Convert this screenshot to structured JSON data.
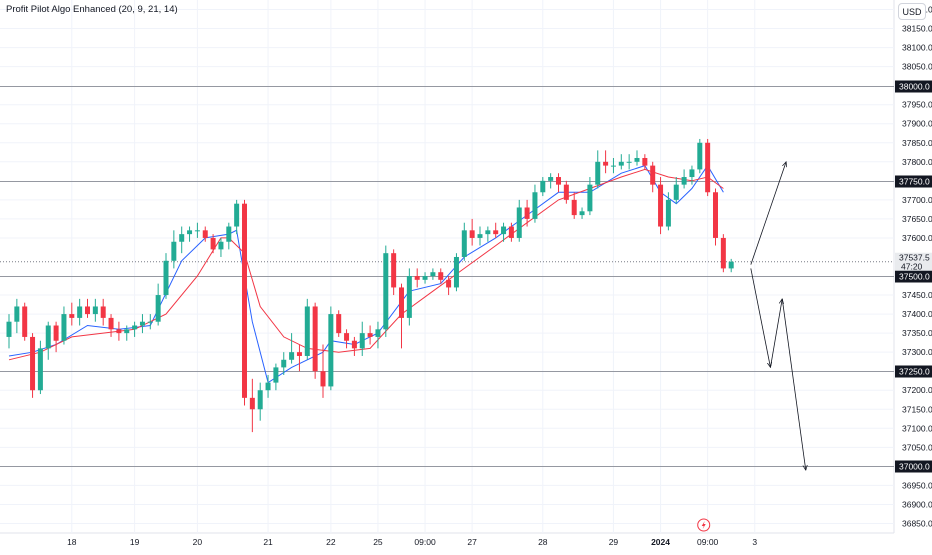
{
  "header": {
    "indicator_title": "Profit Pilot Algo Enhanced (20, 9, 21, 14)",
    "currency_label": "USD"
  },
  "colors": {
    "up": "#22ab94",
    "down": "#f23645",
    "ema_fast": "#2962ff",
    "ema_slow": "#f23645",
    "level_line": "#9598a1",
    "arrow": "#131722"
  },
  "chart_data": {
    "type": "candlestick",
    "y_axis": {
      "min": 36825,
      "max": 38225,
      "ticks": [
        38200,
        38150,
        38100,
        38050,
        37950,
        37900,
        37850,
        37800,
        37700,
        37650,
        37600,
        37450,
        37400,
        37350,
        37300,
        37200,
        37150,
        37100,
        37050,
        36950,
        36900,
        36850
      ],
      "tick_labels": [
        "38200.0",
        "38150.0",
        "38100.0",
        "38050.0",
        "37950.0",
        "37900.0",
        "37850.0",
        "37800.0",
        "37700.0",
        "37650.0",
        "37600.0",
        "37450.0",
        "37400.0",
        "37350.0",
        "37300.0",
        "37200.0",
        "37150.0",
        "37100.0",
        "37050.0",
        "36950.0",
        "36900.0",
        "36850.0"
      ],
      "partial_tick": {
        "value": 37550,
        "label": "37550.0"
      }
    },
    "x_axis": {
      "labels": [
        {
          "label": "18",
          "index": 8
        },
        {
          "label": "19",
          "index": 16
        },
        {
          "label": "20",
          "index": 24
        },
        {
          "label": "21",
          "index": 33
        },
        {
          "label": "22",
          "index": 41
        },
        {
          "label": "25",
          "index": 47
        },
        {
          "label": "09:00",
          "index": 53
        },
        {
          "label": "27",
          "index": 59
        },
        {
          "label": "28",
          "index": 68
        },
        {
          "label": "29",
          "index": 77
        },
        {
          "label": "2024",
          "index": 83,
          "bold": true
        },
        {
          "label": "09:00",
          "index": 89
        },
        {
          "label": "3",
          "index": 95
        }
      ]
    },
    "horizontal_levels": [
      {
        "value": 38000,
        "label": "38000.0"
      },
      {
        "value": 37750,
        "label": "37750.0"
      },
      {
        "value": 37500,
        "label": "37500.0"
      },
      {
        "value": 37250,
        "label": "37250.0"
      },
      {
        "value": 37000,
        "label": "37000.0"
      }
    ],
    "current_price": {
      "value": 37537.5,
      "label": "37537.5",
      "countdown": "47:20",
      "dotted_value": 37537.5
    },
    "candles": [
      {
        "o": 37340,
        "h": 37400,
        "l": 37310,
        "c": 37380
      },
      {
        "o": 37380,
        "h": 37440,
        "l": 37350,
        "c": 37420
      },
      {
        "o": 37420,
        "h": 37430,
        "l": 37330,
        "c": 37340
      },
      {
        "o": 37340,
        "h": 37350,
        "l": 37180,
        "c": 37200
      },
      {
        "o": 37200,
        "h": 37330,
        "l": 37190,
        "c": 37310
      },
      {
        "o": 37310,
        "h": 37380,
        "l": 37280,
        "c": 37370
      },
      {
        "o": 37370,
        "h": 37380,
        "l": 37300,
        "c": 37330
      },
      {
        "o": 37330,
        "h": 37420,
        "l": 37320,
        "c": 37400
      },
      {
        "o": 37400,
        "h": 37430,
        "l": 37370,
        "c": 37390
      },
      {
        "o": 37390,
        "h": 37440,
        "l": 37370,
        "c": 37420
      },
      {
        "o": 37420,
        "h": 37440,
        "l": 37390,
        "c": 37400
      },
      {
        "o": 37400,
        "h": 37440,
        "l": 37380,
        "c": 37420
      },
      {
        "o": 37420,
        "h": 37440,
        "l": 37370,
        "c": 37390
      },
      {
        "o": 37390,
        "h": 37400,
        "l": 37340,
        "c": 37360
      },
      {
        "o": 37360,
        "h": 37380,
        "l": 37330,
        "c": 37350
      },
      {
        "o": 37350,
        "h": 37370,
        "l": 37330,
        "c": 37360
      },
      {
        "o": 37360,
        "h": 37380,
        "l": 37340,
        "c": 37370
      },
      {
        "o": 37370,
        "h": 37400,
        "l": 37350,
        "c": 37380
      },
      {
        "o": 37380,
        "h": 37400,
        "l": 37360,
        "c": 37380
      },
      {
        "o": 37380,
        "h": 37480,
        "l": 37370,
        "c": 37450
      },
      {
        "o": 37450,
        "h": 37560,
        "l": 37440,
        "c": 37540
      },
      {
        "o": 37540,
        "h": 37620,
        "l": 37520,
        "c": 37590
      },
      {
        "o": 37590,
        "h": 37630,
        "l": 37560,
        "c": 37610
      },
      {
        "o": 37610,
        "h": 37630,
        "l": 37590,
        "c": 37620
      },
      {
        "o": 37620,
        "h": 37640,
        "l": 37600,
        "c": 37620
      },
      {
        "o": 37620,
        "h": 37630,
        "l": 37590,
        "c": 37600
      },
      {
        "o": 37600,
        "h": 37610,
        "l": 37560,
        "c": 37570
      },
      {
        "o": 37570,
        "h": 37600,
        "l": 37550,
        "c": 37590
      },
      {
        "o": 37590,
        "h": 37640,
        "l": 37570,
        "c": 37630
      },
      {
        "o": 37630,
        "h": 37700,
        "l": 37610,
        "c": 37690
      },
      {
        "o": 37690,
        "h": 37700,
        "l": 37160,
        "c": 37180
      },
      {
        "o": 37180,
        "h": 37230,
        "l": 37090,
        "c": 37150
      },
      {
        "o": 37150,
        "h": 37220,
        "l": 37120,
        "c": 37200
      },
      {
        "o": 37200,
        "h": 37240,
        "l": 37180,
        "c": 37220
      },
      {
        "o": 37220,
        "h": 37270,
        "l": 37200,
        "c": 37260
      },
      {
        "o": 37260,
        "h": 37300,
        "l": 37240,
        "c": 37280
      },
      {
        "o": 37280,
        "h": 37350,
        "l": 37270,
        "c": 37300
      },
      {
        "o": 37300,
        "h": 37320,
        "l": 37250,
        "c": 37290
      },
      {
        "o": 37290,
        "h": 37440,
        "l": 37280,
        "c": 37420
      },
      {
        "o": 37420,
        "h": 37430,
        "l": 37230,
        "c": 37250
      },
      {
        "o": 37250,
        "h": 37320,
        "l": 37180,
        "c": 37210
      },
      {
        "o": 37210,
        "h": 37420,
        "l": 37200,
        "c": 37400
      },
      {
        "o": 37400,
        "h": 37410,
        "l": 37340,
        "c": 37350
      },
      {
        "o": 37350,
        "h": 37360,
        "l": 37310,
        "c": 37330
      },
      {
        "o": 37330,
        "h": 37340,
        "l": 37290,
        "c": 37310
      },
      {
        "o": 37310,
        "h": 37380,
        "l": 37290,
        "c": 37350
      },
      {
        "o": 37350,
        "h": 37370,
        "l": 37320,
        "c": 37340
      },
      {
        "o": 37340,
        "h": 37380,
        "l": 37310,
        "c": 37360
      },
      {
        "o": 37360,
        "h": 37580,
        "l": 37340,
        "c": 37560
      },
      {
        "o": 37560,
        "h": 37570,
        "l": 37450,
        "c": 37470
      },
      {
        "o": 37470,
        "h": 37480,
        "l": 37310,
        "c": 37390
      },
      {
        "o": 37390,
        "h": 37520,
        "l": 37370,
        "c": 37500
      },
      {
        "o": 37500,
        "h": 37520,
        "l": 37470,
        "c": 37490
      },
      {
        "o": 37490,
        "h": 37510,
        "l": 37480,
        "c": 37500
      },
      {
        "o": 37500,
        "h": 37520,
        "l": 37490,
        "c": 37510
      },
      {
        "o": 37510,
        "h": 37520,
        "l": 37480,
        "c": 37490
      },
      {
        "o": 37490,
        "h": 37500,
        "l": 37450,
        "c": 37470
      },
      {
        "o": 37470,
        "h": 37560,
        "l": 37460,
        "c": 37550
      },
      {
        "o": 37550,
        "h": 37640,
        "l": 37540,
        "c": 37620
      },
      {
        "o": 37620,
        "h": 37650,
        "l": 37580,
        "c": 37600
      },
      {
        "o": 37600,
        "h": 37630,
        "l": 37580,
        "c": 37610
      },
      {
        "o": 37610,
        "h": 37630,
        "l": 37590,
        "c": 37620
      },
      {
        "o": 37620,
        "h": 37640,
        "l": 37600,
        "c": 37610
      },
      {
        "o": 37610,
        "h": 37640,
        "l": 37590,
        "c": 37630
      },
      {
        "o": 37630,
        "h": 37640,
        "l": 37590,
        "c": 37600
      },
      {
        "o": 37600,
        "h": 37700,
        "l": 37590,
        "c": 37680
      },
      {
        "o": 37680,
        "h": 37700,
        "l": 37630,
        "c": 37650
      },
      {
        "o": 37650,
        "h": 37740,
        "l": 37640,
        "c": 37720
      },
      {
        "o": 37720,
        "h": 37760,
        "l": 37710,
        "c": 37750
      },
      {
        "o": 37750,
        "h": 37770,
        "l": 37730,
        "c": 37760
      },
      {
        "o": 37760,
        "h": 37770,
        "l": 37720,
        "c": 37740
      },
      {
        "o": 37740,
        "h": 37750,
        "l": 37690,
        "c": 37700
      },
      {
        "o": 37700,
        "h": 37720,
        "l": 37650,
        "c": 37660
      },
      {
        "o": 37660,
        "h": 37680,
        "l": 37650,
        "c": 37670
      },
      {
        "o": 37670,
        "h": 37760,
        "l": 37660,
        "c": 37740
      },
      {
        "o": 37740,
        "h": 37830,
        "l": 37730,
        "c": 37800
      },
      {
        "o": 37800,
        "h": 37830,
        "l": 37770,
        "c": 37790
      },
      {
        "o": 37790,
        "h": 37810,
        "l": 37770,
        "c": 37790
      },
      {
        "o": 37790,
        "h": 37820,
        "l": 37780,
        "c": 37800
      },
      {
        "o": 37800,
        "h": 37820,
        "l": 37780,
        "c": 37800
      },
      {
        "o": 37800,
        "h": 37830,
        "l": 37790,
        "c": 37810
      },
      {
        "o": 37810,
        "h": 37820,
        "l": 37780,
        "c": 37790
      },
      {
        "o": 37790,
        "h": 37800,
        "l": 37720,
        "c": 37740
      },
      {
        "o": 37740,
        "h": 37760,
        "l": 37610,
        "c": 37630
      },
      {
        "o": 37630,
        "h": 37720,
        "l": 37620,
        "c": 37700
      },
      {
        "o": 37700,
        "h": 37760,
        "l": 37690,
        "c": 37740
      },
      {
        "o": 37740,
        "h": 37780,
        "l": 37730,
        "c": 37760
      },
      {
        "o": 37760,
        "h": 37790,
        "l": 37740,
        "c": 37780
      },
      {
        "o": 37780,
        "h": 37860,
        "l": 37770,
        "c": 37850
      },
      {
        "o": 37850,
        "h": 37860,
        "l": 37710,
        "c": 37720
      },
      {
        "o": 37720,
        "h": 37730,
        "l": 37580,
        "c": 37600
      },
      {
        "o": 37600,
        "h": 37610,
        "l": 37510,
        "c": 37520
      },
      {
        "o": 37520,
        "h": 37545,
        "l": 37510,
        "c": 37537.5
      }
    ],
    "ema_fast": [
      [
        0,
        37290
      ],
      [
        3,
        37300
      ],
      [
        6,
        37320
      ],
      [
        10,
        37370
      ],
      [
        14,
        37360
      ],
      [
        18,
        37370
      ],
      [
        22,
        37540
      ],
      [
        25,
        37600
      ],
      [
        28,
        37610
      ],
      [
        29,
        37620
      ],
      [
        31,
        37380
      ],
      [
        33,
        37220
      ],
      [
        36,
        37260
      ],
      [
        40,
        37300
      ],
      [
        41,
        37330
      ],
      [
        44,
        37320
      ],
      [
        47,
        37350
      ],
      [
        51,
        37460
      ],
      [
        55,
        37480
      ],
      [
        58,
        37550
      ],
      [
        62,
        37600
      ],
      [
        66,
        37660
      ],
      [
        70,
        37720
      ],
      [
        74,
        37720
      ],
      [
        78,
        37770
      ],
      [
        81,
        37790
      ],
      [
        83,
        37720
      ],
      [
        85,
        37690
      ],
      [
        87,
        37730
      ],
      [
        89,
        37790
      ],
      [
        91,
        37720
      ]
    ],
    "ema_slow": [
      [
        0,
        37280
      ],
      [
        4,
        37300
      ],
      [
        8,
        37340
      ],
      [
        12,
        37350
      ],
      [
        16,
        37360
      ],
      [
        20,
        37400
      ],
      [
        24,
        37500
      ],
      [
        27,
        37600
      ],
      [
        28,
        37600
      ],
      [
        30,
        37560
      ],
      [
        32,
        37420
      ],
      [
        35,
        37340
      ],
      [
        38,
        37310
      ],
      [
        42,
        37300
      ],
      [
        46,
        37310
      ],
      [
        50,
        37400
      ],
      [
        54,
        37460
      ],
      [
        58,
        37520
      ],
      [
        62,
        37580
      ],
      [
        66,
        37640
      ],
      [
        70,
        37700
      ],
      [
        74,
        37730
      ],
      [
        78,
        37760
      ],
      [
        81,
        37780
      ],
      [
        84,
        37760
      ],
      [
        87,
        37750
      ],
      [
        89,
        37760
      ],
      [
        91,
        37730
      ]
    ],
    "projection_arrows": [
      {
        "points": [
          [
            94.5,
            37530
          ],
          [
            99,
            37800
          ]
        ]
      },
      {
        "points": [
          [
            94.5,
            37520
          ],
          [
            97,
            37260
          ],
          [
            98.5,
            37440
          ],
          [
            101.5,
            36990
          ]
        ]
      }
    ]
  }
}
